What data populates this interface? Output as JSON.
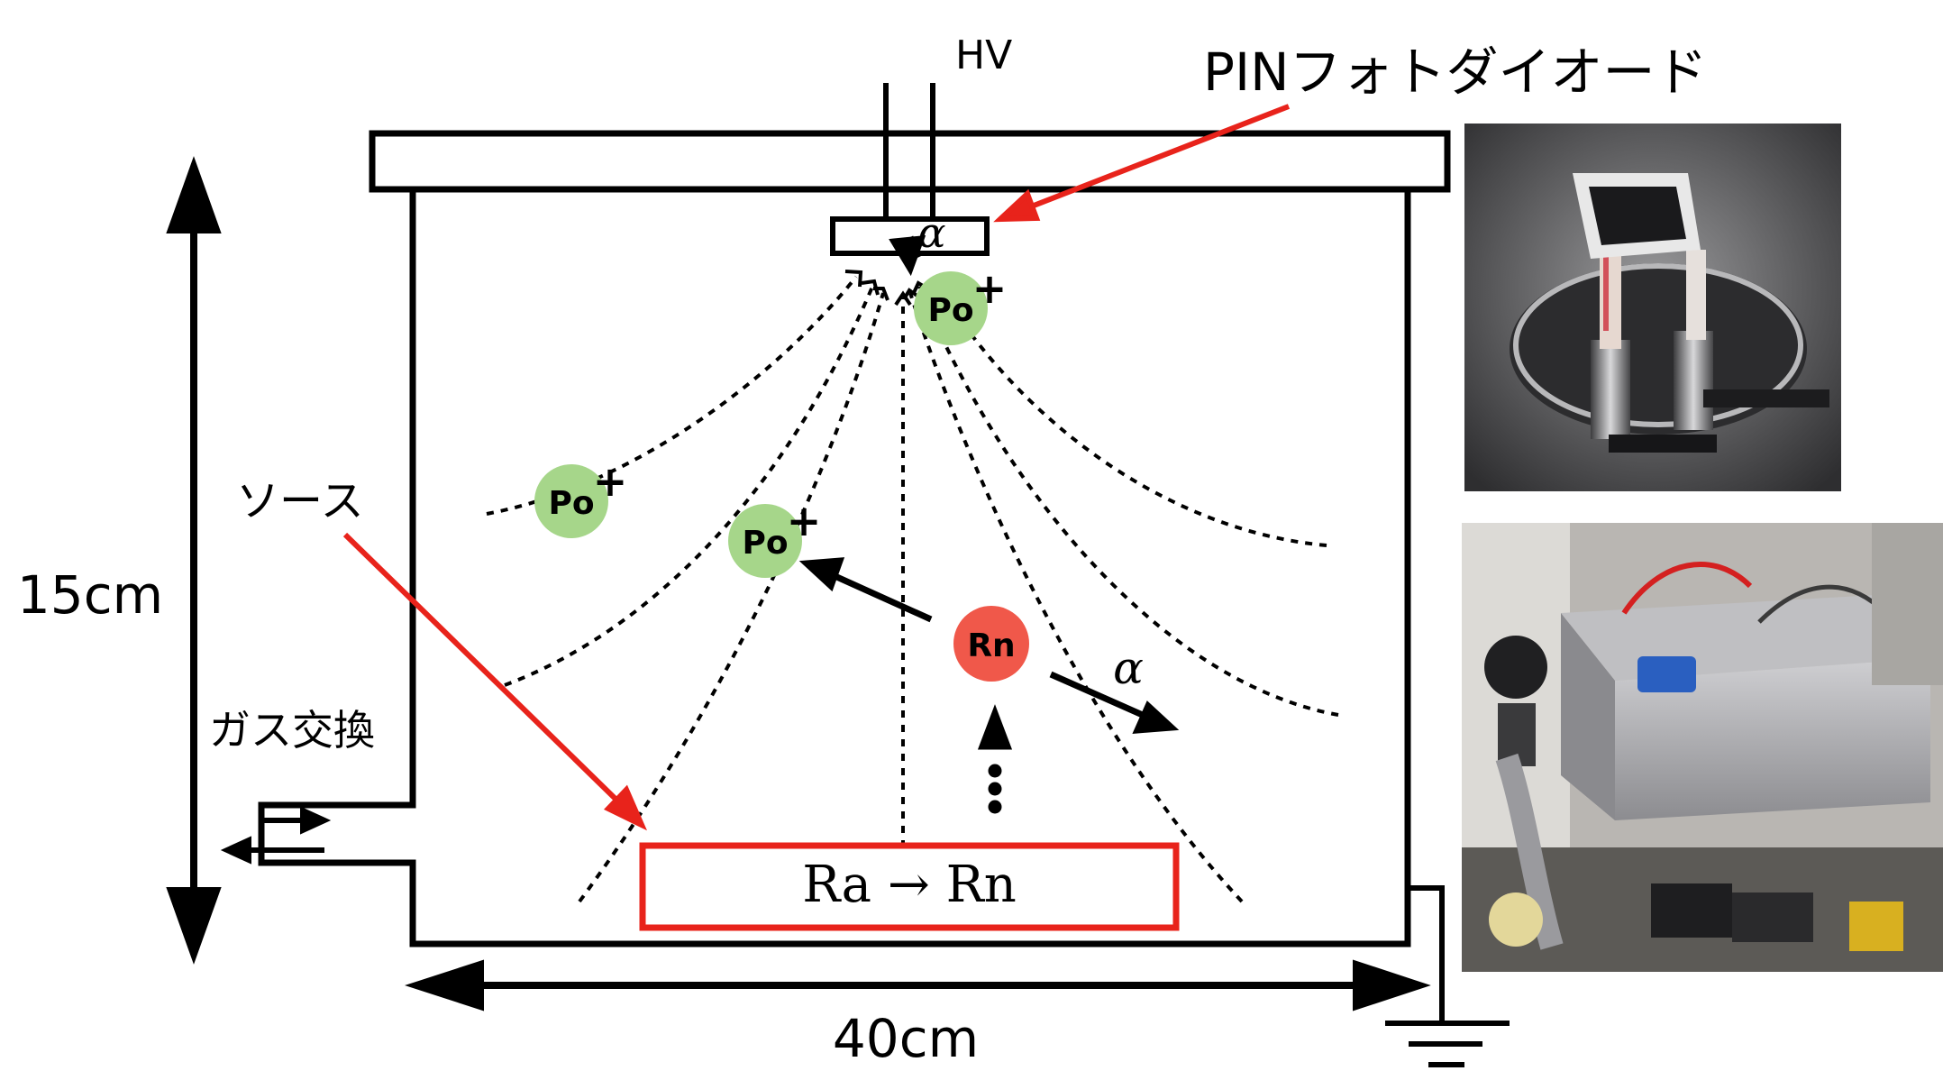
{
  "labels": {
    "hv": "HV",
    "pin_photodiode": "PINフォトダイオード",
    "source": "ソース",
    "gas_exchange": "ガス交換",
    "height": "15cm",
    "width": "40cm",
    "source_box": "Ra → Rn",
    "alpha_top": "α",
    "alpha_right": "α"
  },
  "particles": {
    "po_ion": "Po",
    "charge": "+",
    "rn": "Rn"
  },
  "colors": {
    "po_fill": "#a6d68a",
    "rn_fill": "#f0584a",
    "red_arrow": "#e8231b",
    "source_outline": "#e8231b",
    "outline": "#000000"
  },
  "photos": {
    "top": "pin-photodiode-photo",
    "bottom": "detector-setup-photo"
  }
}
